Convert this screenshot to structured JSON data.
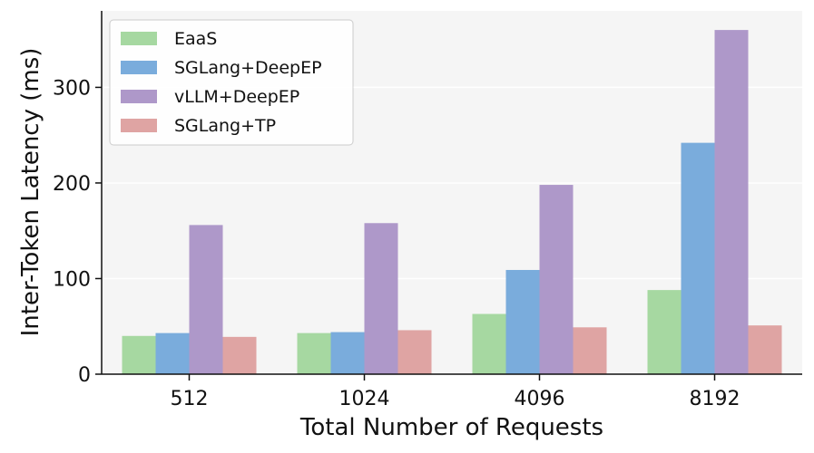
{
  "chart_data": {
    "type": "bar",
    "title": "",
    "xlabel": "Total Number of Requests",
    "ylabel": "Inter-Token Latency (ms)",
    "categories": [
      "512",
      "1024",
      "4096",
      "8192"
    ],
    "series": [
      {
        "name": "EaaS",
        "color": "#a6d8a1",
        "values": [
          40,
          43,
          63,
          88
        ]
      },
      {
        "name": "SGLang+DeepEP",
        "color": "#7aacdc",
        "values": [
          43,
          44,
          109,
          242
        ]
      },
      {
        "name": "vLLM+DeepEP",
        "color": "#ae98c9",
        "values": [
          156,
          158,
          198,
          360
        ]
      },
      {
        "name": "SGLang+TP",
        "color": "#dfa4a3",
        "values": [
          39,
          46,
          49,
          51
        ]
      }
    ],
    "ylim": [
      0,
      380
    ],
    "yticks": [
      0,
      100,
      200,
      300
    ],
    "grid": true,
    "legend_position": "top-left",
    "background_color": "#f5f5f5"
  }
}
